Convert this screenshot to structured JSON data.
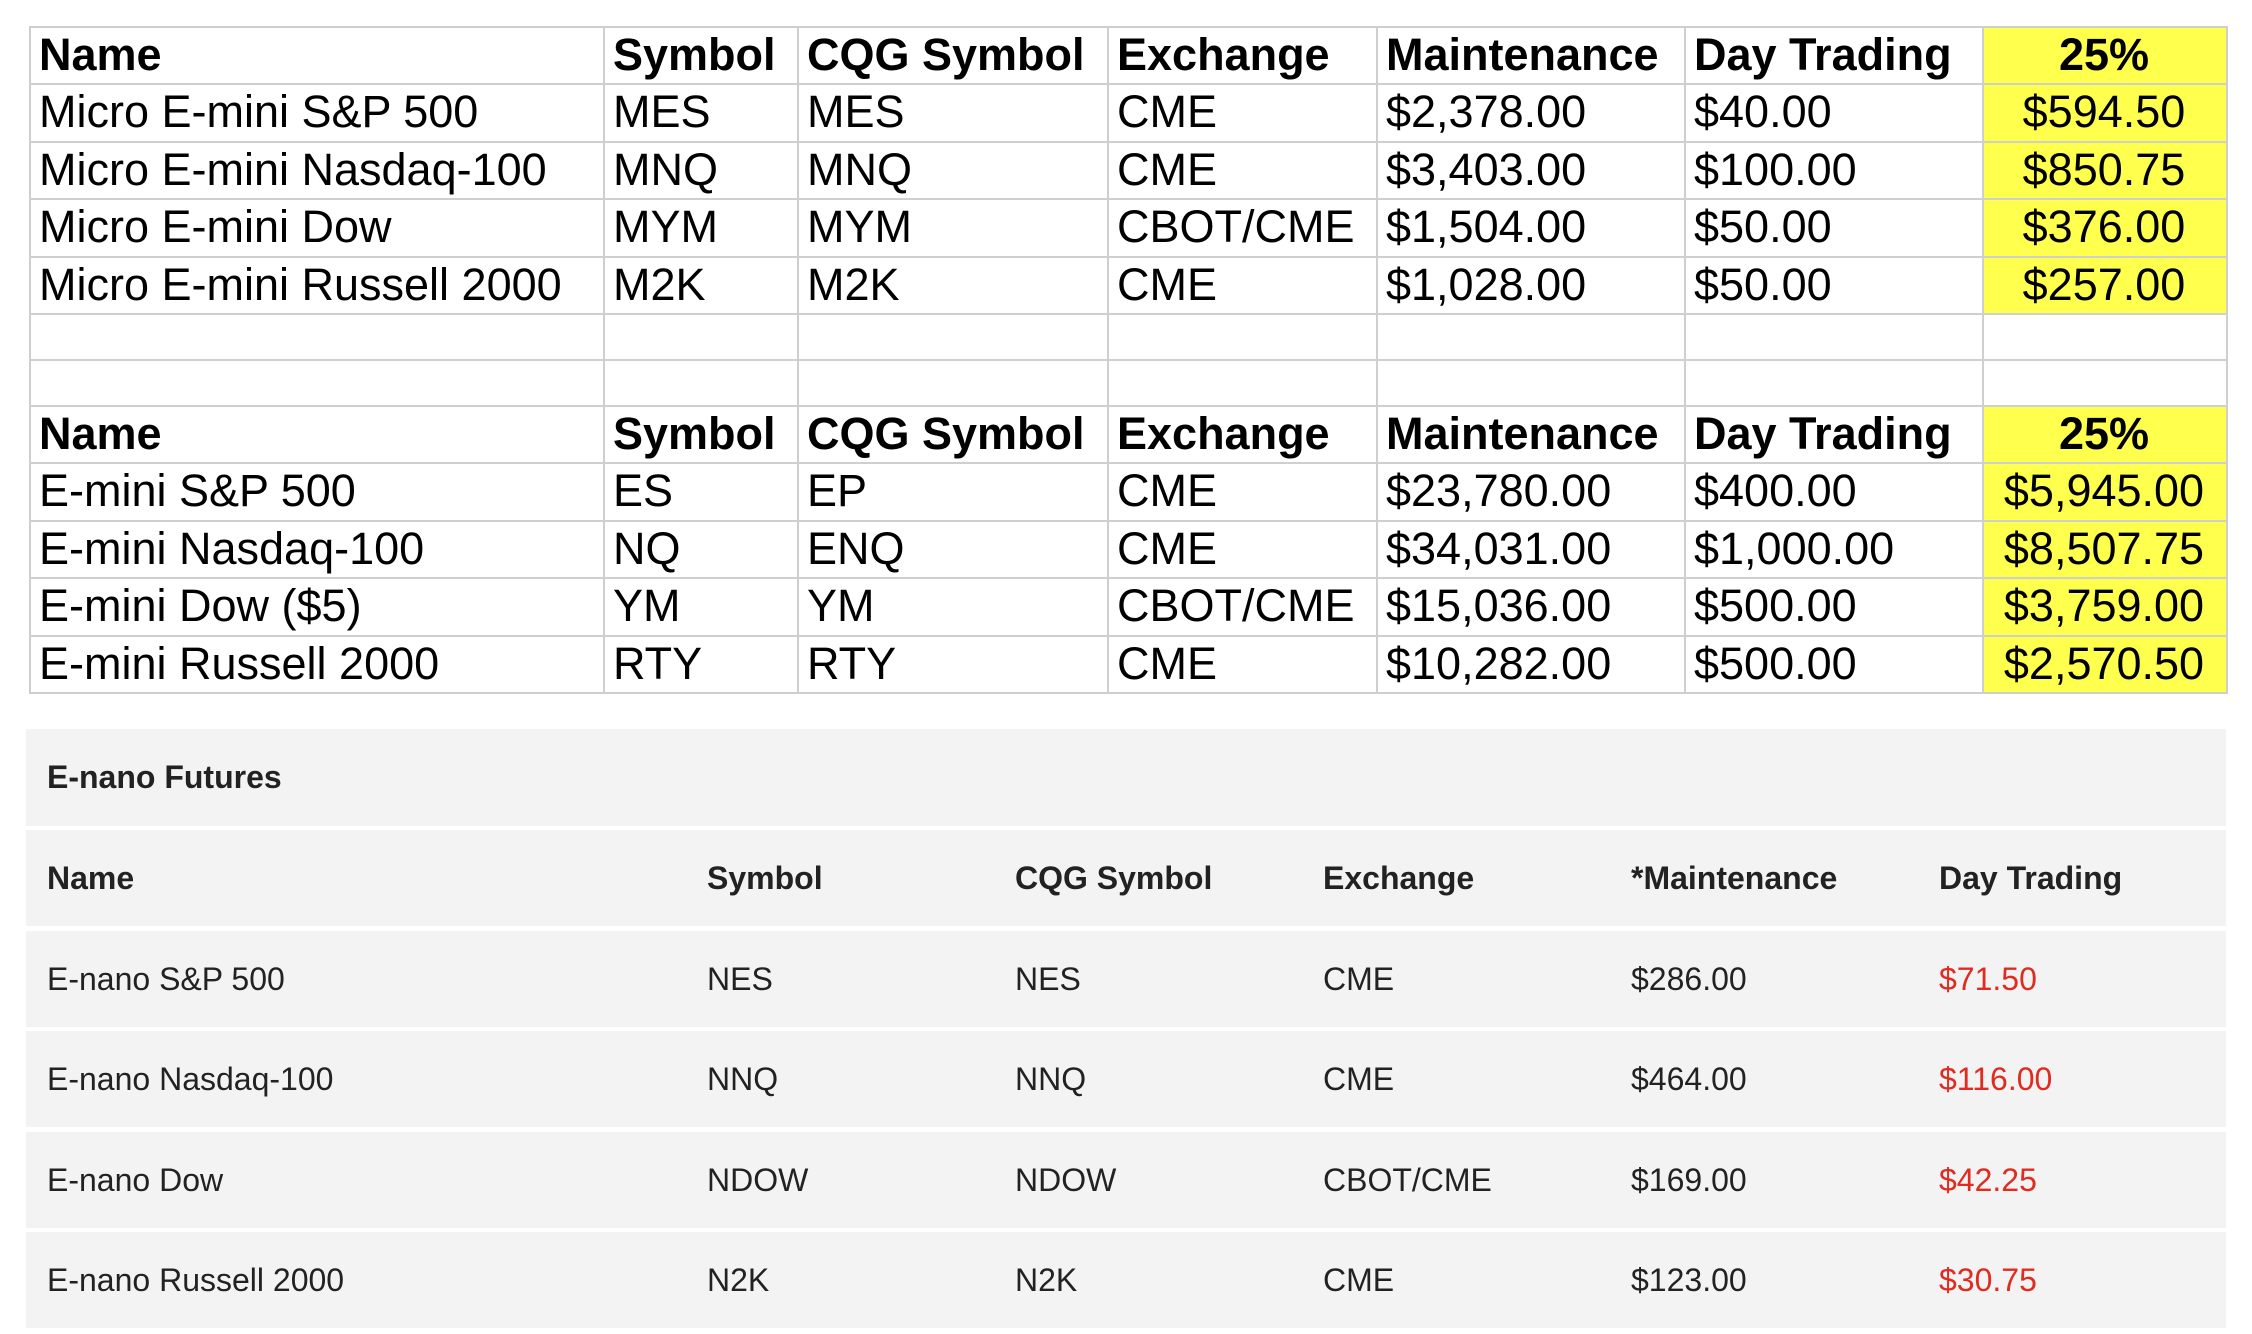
{
  "spreadsheet": {
    "tables": [
      {
        "header": [
          "Name",
          "Symbol",
          "CQG Symbol",
          "Exchange",
          "Maintenance",
          "Day Trading",
          "25%"
        ],
        "rows": [
          [
            "Micro E-mini S&P 500",
            "MES",
            "MES",
            "CME",
            "$2,378.00",
            "$40.00",
            "$594.50"
          ],
          [
            "Micro E-mini Nasdaq-100",
            "MNQ",
            "MNQ",
            "CME",
            "$3,403.00",
            "$100.00",
            "$850.75"
          ],
          [
            "Micro E-mini Dow",
            "MYM",
            "MYM",
            "CBOT/CME",
            "$1,504.00",
            "$50.00",
            "$376.00"
          ],
          [
            "Micro E-mini Russell 2000",
            "M2K",
            "M2K",
            "CME",
            "$1,028.00",
            "$50.00",
            "$257.00"
          ]
        ]
      },
      {
        "header": [
          "Name",
          "Symbol",
          "CQG Symbol",
          "Exchange",
          "Maintenance",
          "Day Trading",
          "25%"
        ],
        "rows": [
          [
            "E-mini S&P 500",
            "ES",
            "EP",
            "CME",
            "$23,780.00",
            "$400.00",
            "$5,945.00"
          ],
          [
            "E-mini Nasdaq-100",
            "NQ",
            "ENQ",
            "CME",
            "$34,031.00",
            "$1,000.00",
            "$8,507.75"
          ],
          [
            "E-mini Dow ($5)",
            "YM",
            "YM",
            "CBOT/CME",
            "$15,036.00",
            "$500.00",
            "$3,759.00"
          ],
          [
            "E-mini Russell 2000",
            "RTY",
            "RTY",
            "CME",
            "$10,282.00",
            "$500.00",
            "$2,570.50"
          ]
        ]
      }
    ]
  },
  "enano": {
    "title": "E-nano Futures",
    "header": [
      "Name",
      "Symbol",
      "CQG Symbol",
      "Exchange",
      "*Maintenance",
      "Day Trading"
    ],
    "rows": [
      [
        "E-nano S&P 500",
        "NES",
        "NES",
        "CME",
        "$286.00",
        "$71.50"
      ],
      [
        "E-nano Nasdaq-100",
        "NNQ",
        "NNQ",
        "CME",
        "$464.00",
        "$116.00"
      ],
      [
        "E-nano Dow",
        "NDOW",
        "NDOW",
        "CBOT/CME",
        "$169.00",
        "$42.25"
      ],
      [
        "E-nano Russell 2000",
        "N2K",
        "N2K",
        "CME",
        "$123.00",
        "$30.75"
      ]
    ]
  }
}
